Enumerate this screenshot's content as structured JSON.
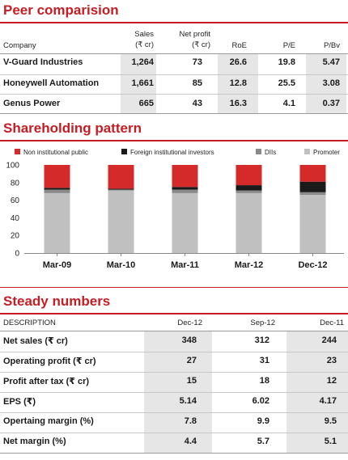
{
  "colors": {
    "accent": "#c41e24",
    "non_institutional": "#d42a2a",
    "fii": "#1a1a1a",
    "diis": "#8a8a8a",
    "promoter": "#c0c0c0",
    "shade": "#e6e6e6"
  },
  "peer": {
    "title": "Peer comparision",
    "headers": {
      "company": "Company",
      "sales_1": "Sales",
      "sales_2": "(₹ cr)",
      "np_1": "Net profit",
      "np_2": "(₹ cr)",
      "roe": "RoE",
      "pe": "P/E",
      "pbv": "P/Bv"
    },
    "rows": [
      {
        "company": "V-Guard Industries",
        "sales": "1,264",
        "np": "73",
        "roe": "26.6",
        "pe": "19.8",
        "pbv": "5.47"
      },
      {
        "company": "Honeywell Automation",
        "sales": "1,661",
        "np": "85",
        "roe": "12.8",
        "pe": "25.5",
        "pbv": "3.08"
      },
      {
        "company": "Genus Power",
        "sales": "665",
        "np": "43",
        "roe": "16.3",
        "pe": "4.1",
        "pbv": "0.37"
      }
    ]
  },
  "shareholding": {
    "title": "Shareholding pattern"
  },
  "chart_data": {
    "type": "bar",
    "stacked": true,
    "categories": [
      "Mar-09",
      "Mar-10",
      "Mar-11",
      "Mar-12",
      "Dec-12"
    ],
    "series": [
      {
        "name": "Promoter",
        "color": "#c0c0c0",
        "values": [
          68,
          71,
          68,
          68,
          66
        ]
      },
      {
        "name": "DIIs",
        "color": "#8a8a8a",
        "values": [
          4,
          1,
          4,
          3,
          3
        ]
      },
      {
        "name": "Foreign institutional investors",
        "color": "#1a1a1a",
        "values": [
          2,
          1,
          3,
          6,
          12
        ]
      },
      {
        "name": "Non institutional public",
        "color": "#d42a2a",
        "values": [
          26,
          27,
          25,
          23,
          19
        ]
      }
    ],
    "legend_order": [
      "Non institutional public",
      "Foreign institutional investors",
      "DIIs",
      "Promoter"
    ],
    "yticks": [
      "0",
      "20",
      "40",
      "60",
      "80",
      "100"
    ],
    "ylim": [
      0,
      100
    ],
    "legend_position": "top",
    "grid": false
  },
  "steady": {
    "title": "Steady numbers",
    "headers": {
      "desc": "DESCRIPTION",
      "c1": "Dec-12",
      "c2": "Sep-12",
      "c3": "Dec-11"
    },
    "rows": [
      {
        "label": "Net sales (₹ cr)",
        "c1": "348",
        "c2": "312",
        "c3": "244"
      },
      {
        "label": "Operating profit (₹ cr)",
        "c1": "27",
        "c2": "31",
        "c3": "23"
      },
      {
        "label": "Profit after tax (₹ cr)",
        "c1": "15",
        "c2": "18",
        "c3": "12"
      },
      {
        "label": "EPS (₹)",
        "c1": "5.14",
        "c2": "6.02",
        "c3": "4.17"
      },
      {
        "label": "Opertaing margin (%)",
        "c1": "7.8",
        "c2": "9.9",
        "c3": "9.5"
      },
      {
        "label": "Net margin (%)",
        "c1": "4.4",
        "c2": "5.7",
        "c3": "5.1"
      }
    ]
  }
}
